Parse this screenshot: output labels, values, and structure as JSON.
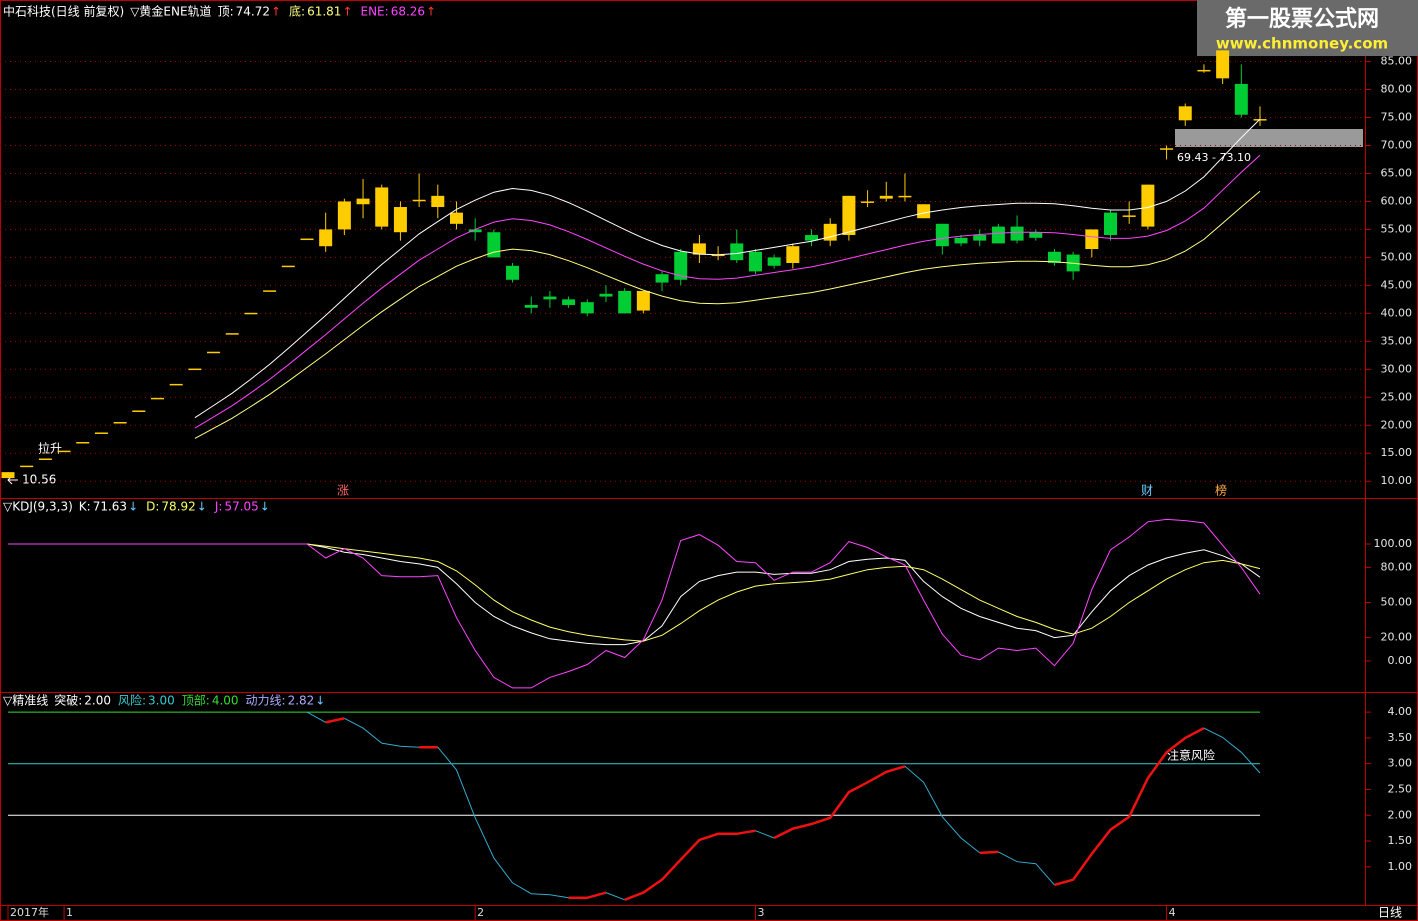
{
  "chart_data": [
    {
      "type": "candlestick",
      "title": "中石科技(日线 前复权)",
      "indicator": "▽黄金ENE轨道",
      "categories": [
        "2017年",
        null,
        null,
        "1",
        null,
        null,
        null,
        null,
        null,
        null,
        null,
        null,
        null,
        null,
        null,
        null,
        null,
        null,
        null,
        null,
        null,
        null,
        null,
        null,
        null,
        "2",
        null,
        null,
        null,
        null,
        null,
        null,
        null,
        null,
        null,
        null,
        null,
        null,
        null,
        null,
        "3",
        null,
        null,
        null,
        null,
        null,
        null,
        null,
        null,
        null,
        null,
        null,
        null,
        null,
        null,
        null,
        null,
        null,
        null,
        null,
        null,
        null,
        "4",
        null,
        null,
        null,
        null,
        null
      ],
      "open": [
        10.56,
        12.78,
        14.06,
        15.46,
        17.01,
        18.71,
        20.58,
        22.64,
        24.9,
        27.39,
        30.13,
        33.14,
        36.46,
        40.1,
        44.11,
        48.52,
        53.37,
        52,
        55,
        59.5,
        55.5,
        54.5,
        60.3,
        59,
        56,
        55,
        54.5,
        48.5,
        41.5,
        43,
        42.5,
        42,
        43.5,
        44,
        40.5,
        47,
        51,
        50.5,
        50.5,
        52.5,
        51,
        50,
        49,
        54,
        53,
        54,
        60,
        60.5,
        61,
        57,
        56,
        53.5,
        54,
        55.5,
        55.5,
        54.5,
        51,
        50.5,
        51.5,
        58,
        57.5,
        55.5,
        69.5,
        74.5,
        83.5,
        82,
        81,
        74.72
      ],
      "close": [
        11.62,
        12.78,
        14.06,
        15.46,
        17.01,
        18.71,
        20.58,
        22.64,
        24.9,
        27.39,
        30.13,
        33.14,
        36.46,
        40.1,
        44.11,
        48.52,
        53.37,
        55,
        60,
        60.5,
        62.5,
        59,
        60.3,
        61,
        58,
        54.5,
        50,
        46,
        41,
        42.5,
        41.5,
        40,
        43,
        40,
        44,
        45.5,
        46,
        52.5,
        50.5,
        49.5,
        47.5,
        48.5,
        52,
        53,
        56,
        61,
        60,
        61,
        61,
        59.5,
        52,
        52.5,
        53,
        52.5,
        53,
        53.5,
        49,
        47.5,
        55,
        54,
        57.5,
        63,
        69.5,
        77,
        83.5,
        87,
        75.5,
        74.72
      ],
      "high": [
        11.62,
        12.78,
        14.06,
        15.46,
        17.01,
        18.71,
        20.58,
        22.64,
        24.9,
        27.39,
        30.13,
        33.14,
        36.46,
        40.1,
        44.11,
        48.52,
        53.37,
        58,
        60.5,
        64,
        63,
        60,
        65,
        63,
        60,
        57,
        55,
        49,
        43,
        44,
        43,
        42.5,
        45,
        44.5,
        44,
        47.5,
        51.5,
        54,
        52,
        55,
        51.5,
        50.5,
        52.5,
        55,
        57,
        61,
        62,
        63.5,
        65,
        59.5,
        56,
        54,
        55,
        56,
        57.5,
        55,
        51.5,
        51,
        55,
        58.5,
        60,
        63,
        70,
        77.5,
        84.5,
        87,
        84.5,
        77
      ],
      "low": [
        10.56,
        12.78,
        14.06,
        15.46,
        17.01,
        18.71,
        20.58,
        22.64,
        24.9,
        27.39,
        30.13,
        33.14,
        36.46,
        40.1,
        44.11,
        48.52,
        53.37,
        51,
        54,
        57,
        55,
        53,
        59,
        57,
        55,
        53,
        50,
        45.5,
        40,
        41,
        41,
        39.5,
        42,
        40,
        40,
        44,
        45,
        49,
        49.5,
        49,
        47,
        48,
        48,
        52,
        52,
        53,
        59,
        60,
        60,
        57,
        50.5,
        52,
        52,
        52.5,
        52.5,
        53,
        48.5,
        46,
        50,
        53,
        56,
        55,
        67.5,
        73.5,
        83,
        81,
        75,
        73.5
      ],
      "up_color": "#ffcc00",
      "down_color": "#00cc33",
      "arrow": "↑",
      "arrow_color": "#ff3333",
      "series": [
        {
          "name": "顶:",
          "color": "#ffffff",
          "values": [
            null,
            null,
            null,
            null,
            null,
            null,
            null,
            null,
            null,
            null,
            21.35,
            23.54,
            25.73,
            28.25,
            30.88,
            33.73,
            36.68,
            39.64,
            42.71,
            45.77,
            48.73,
            51.47,
            54.2,
            56.39,
            58.58,
            60.23,
            61.65,
            62.31,
            61.98,
            61.1,
            59.79,
            58.25,
            56.61,
            54.97,
            53.44,
            52.12,
            51.14,
            50.59,
            50.48,
            50.7,
            51.25,
            51.79,
            52.34,
            52.89,
            53.66,
            54.53,
            55.41,
            56.28,
            57.16,
            57.93,
            58.47,
            58.91,
            59.24,
            59.46,
            59.68,
            59.68,
            59.57,
            59.24,
            58.8,
            58.47,
            58.47,
            58.91,
            60.01,
            61.87,
            64.39,
            67.89,
            71.39,
            74.72
          ]
        },
        {
          "name": "底:",
          "color": "#ffff80",
          "values": [
            null,
            null,
            null,
            null,
            null,
            null,
            null,
            null,
            null,
            null,
            17.65,
            19.46,
            21.27,
            23.35,
            25.52,
            27.87,
            30.32,
            32.76,
            35.3,
            37.83,
            40.27,
            42.54,
            44.8,
            46.61,
            48.42,
            49.78,
            50.95,
            51.49,
            51.22,
            50.5,
            49.41,
            48.15,
            46.79,
            45.43,
            44.16,
            43.08,
            42.26,
            41.81,
            41.72,
            41.9,
            42.35,
            42.81,
            43.26,
            43.71,
            44.35,
            45.07,
            45.79,
            46.52,
            47.24,
            47.87,
            48.33,
            48.69,
            48.96,
            49.14,
            49.32,
            49.32,
            49.23,
            48.96,
            48.6,
            48.33,
            48.33,
            48.69,
            49.59,
            51.13,
            53.21,
            56.11,
            59.01,
            61.81
          ]
        },
        {
          "name": "ENE:",
          "color": "#ff44ff",
          "values": [
            null,
            null,
            null,
            null,
            null,
            null,
            null,
            null,
            null,
            null,
            19.5,
            21.5,
            23.5,
            25.8,
            28.2,
            30.8,
            33.5,
            36.2,
            39,
            41.8,
            44.5,
            47,
            49.5,
            51.5,
            53.5,
            55,
            56.3,
            56.9,
            56.6,
            55.8,
            54.6,
            53.2,
            51.7,
            50.2,
            48.8,
            47.6,
            46.7,
            46.2,
            46.1,
            46.3,
            46.8,
            47.3,
            47.8,
            48.3,
            49,
            49.8,
            50.6,
            51.4,
            52.2,
            52.9,
            53.4,
            53.8,
            54.1,
            54.3,
            54.5,
            54.5,
            54.4,
            54.1,
            53.7,
            53.4,
            53.4,
            53.8,
            54.8,
            56.5,
            58.8,
            62,
            65.2,
            68.26
          ]
        }
      ],
      "ylim": [
        7,
        96
      ],
      "yticks": [
        {
          "value": 10,
          "label": "10.00"
        },
        {
          "value": 15,
          "label": "15.00"
        },
        {
          "value": 20,
          "label": "20.00"
        },
        {
          "value": 25,
          "label": "25.00"
        },
        {
          "value": 30,
          "label": "30.00"
        },
        {
          "value": 35,
          "label": "35.00"
        },
        {
          "value": 40,
          "label": "40.00"
        },
        {
          "value": 45,
          "label": "45.00"
        },
        {
          "value": 50,
          "label": "50.00"
        },
        {
          "value": 55,
          "label": "55.00"
        },
        {
          "value": 60,
          "label": "60.00"
        },
        {
          "value": 65,
          "label": "65.00"
        },
        {
          "value": 70,
          "label": "70.00"
        },
        {
          "value": 75,
          "label": "75.00"
        },
        {
          "value": 80,
          "label": "80.00"
        },
        {
          "value": 85,
          "label": "85.00"
        }
      ],
      "grid": true,
      "annotations": {
        "rise": "拉升",
        "low": 10.56,
        "range": "69.43 - 73.10",
        "tags": [
          "涨",
          "财",
          "榜"
        ]
      }
    },
    {
      "type": "line",
      "title": "▽KDJ(9,3,3)",
      "arrow": "↓",
      "arrow_color": "#66ccff",
      "series": [
        {
          "name": "K:",
          "color": "#ffffff",
          "values": [
            100,
            100,
            100,
            100,
            100,
            100,
            100,
            100,
            100,
            100,
            100,
            100,
            100,
            100,
            100,
            100,
            100,
            97,
            93,
            91,
            88,
            85,
            83,
            80,
            66,
            50,
            38,
            30,
            24,
            19,
            17,
            15,
            14,
            14,
            17,
            30,
            55,
            68,
            73,
            76,
            76,
            74,
            75,
            75,
            78,
            85,
            87,
            88,
            86,
            68,
            55,
            45,
            38,
            33,
            28,
            26,
            20,
            22,
            42,
            60,
            73,
            82,
            88,
            92,
            95,
            90,
            83,
            71.63
          ]
        },
        {
          "name": "D:",
          "color": "#ffff66",
          "values": [
            100,
            100,
            100,
            100,
            100,
            100,
            100,
            100,
            100,
            100,
            100,
            100,
            100,
            100,
            100,
            100,
            100,
            98,
            96,
            94,
            92,
            90,
            88,
            85,
            77,
            65,
            52,
            42,
            35,
            29,
            25,
            22,
            20,
            18,
            17,
            22,
            32,
            43,
            52,
            59,
            64,
            66,
            67,
            68,
            70,
            74,
            78,
            80,
            81,
            78,
            70,
            61,
            52,
            45,
            38,
            33,
            27,
            23,
            28,
            38,
            50,
            60,
            70,
            78,
            84,
            86,
            83,
            78.92
          ]
        },
        {
          "name": "J:",
          "color": "#ff44ff",
          "values": [
            100,
            100,
            100,
            100,
            100,
            100,
            100,
            100,
            100,
            100,
            100,
            100,
            100,
            100,
            100,
            100,
            100,
            88,
            96,
            88,
            73,
            72,
            72,
            73,
            37,
            9,
            -14,
            -23,
            -23,
            -14,
            -9,
            -3,
            9,
            3,
            18,
            52,
            103,
            108,
            99,
            85,
            84,
            69,
            76,
            76,
            84,
            102,
            97,
            89,
            82,
            52,
            23,
            5,
            1,
            11,
            9,
            11,
            -4,
            15,
            61,
            95,
            106,
            119,
            121,
            120,
            118,
            99,
            80,
            57.05
          ]
        }
      ],
      "ylim": [
        -26.5,
        139.3
      ],
      "yticks": [
        {
          "value": 0,
          "label": "0.00"
        },
        {
          "value": 20,
          "label": "20.00"
        },
        {
          "value": 50,
          "label": "50.00"
        },
        {
          "value": 80,
          "label": "80.00"
        },
        {
          "value": 100,
          "label": "100.00"
        }
      ]
    },
    {
      "type": "line",
      "title": "▽精准线",
      "arrow": "↓",
      "arrow_color": "#66ccff",
      "levels": [
        {
          "name": "突破:",
          "value": 2,
          "value_label": "2.00",
          "color": "#ffffff"
        },
        {
          "name": "风险:",
          "value": 3,
          "value_label": "3.00",
          "color": "#33cccc"
        },
        {
          "name": "顶部:",
          "value": 4,
          "value_label": "4.00",
          "color": "#33dd33"
        }
      ],
      "series": [
        {
          "name": "动力线:",
          "color": "#aaaaff",
          "rise_color": "#ee1111",
          "fall_color": "#33aacc",
          "values": [
            null,
            null,
            null,
            null,
            null,
            null,
            null,
            null,
            null,
            null,
            null,
            null,
            null,
            null,
            null,
            null,
            4.0,
            3.8,
            3.88,
            3.69,
            3.4,
            3.34,
            3.32,
            3.32,
            2.88,
            1.95,
            1.17,
            0.69,
            0.48,
            0.46,
            0.4,
            0.4,
            0.5,
            0.36,
            0.5,
            0.75,
            1.14,
            1.52,
            1.64,
            1.64,
            1.7,
            1.56,
            1.74,
            1.83,
            1.95,
            2.45,
            2.64,
            2.84,
            2.95,
            2.64,
            1.97,
            1.56,
            1.27,
            1.29,
            1.1,
            1.06,
            0.65,
            0.75,
            1.25,
            1.72,
            1.97,
            2.72,
            3.22,
            3.5,
            3.69,
            3.51,
            3.22,
            2.82
          ]
        }
      ],
      "annotation": "注意风险",
      "ylim": [
        0.26,
        4.39
      ],
      "yticks": [
        {
          "value": 1,
          "label": "1.00"
        },
        {
          "value": 1.5,
          "label": "1.50"
        },
        {
          "value": 2,
          "label": "2.00"
        },
        {
          "value": 2.5,
          "label": "2.50"
        },
        {
          "value": 3,
          "label": "3.00"
        },
        {
          "value": 3.5,
          "label": "3.50"
        },
        {
          "value": 4,
          "label": "4.00"
        }
      ]
    }
  ],
  "period": "日线",
  "watermark": {
    "title": "第一股票公式网",
    "url": "www.chnmoney.com"
  }
}
